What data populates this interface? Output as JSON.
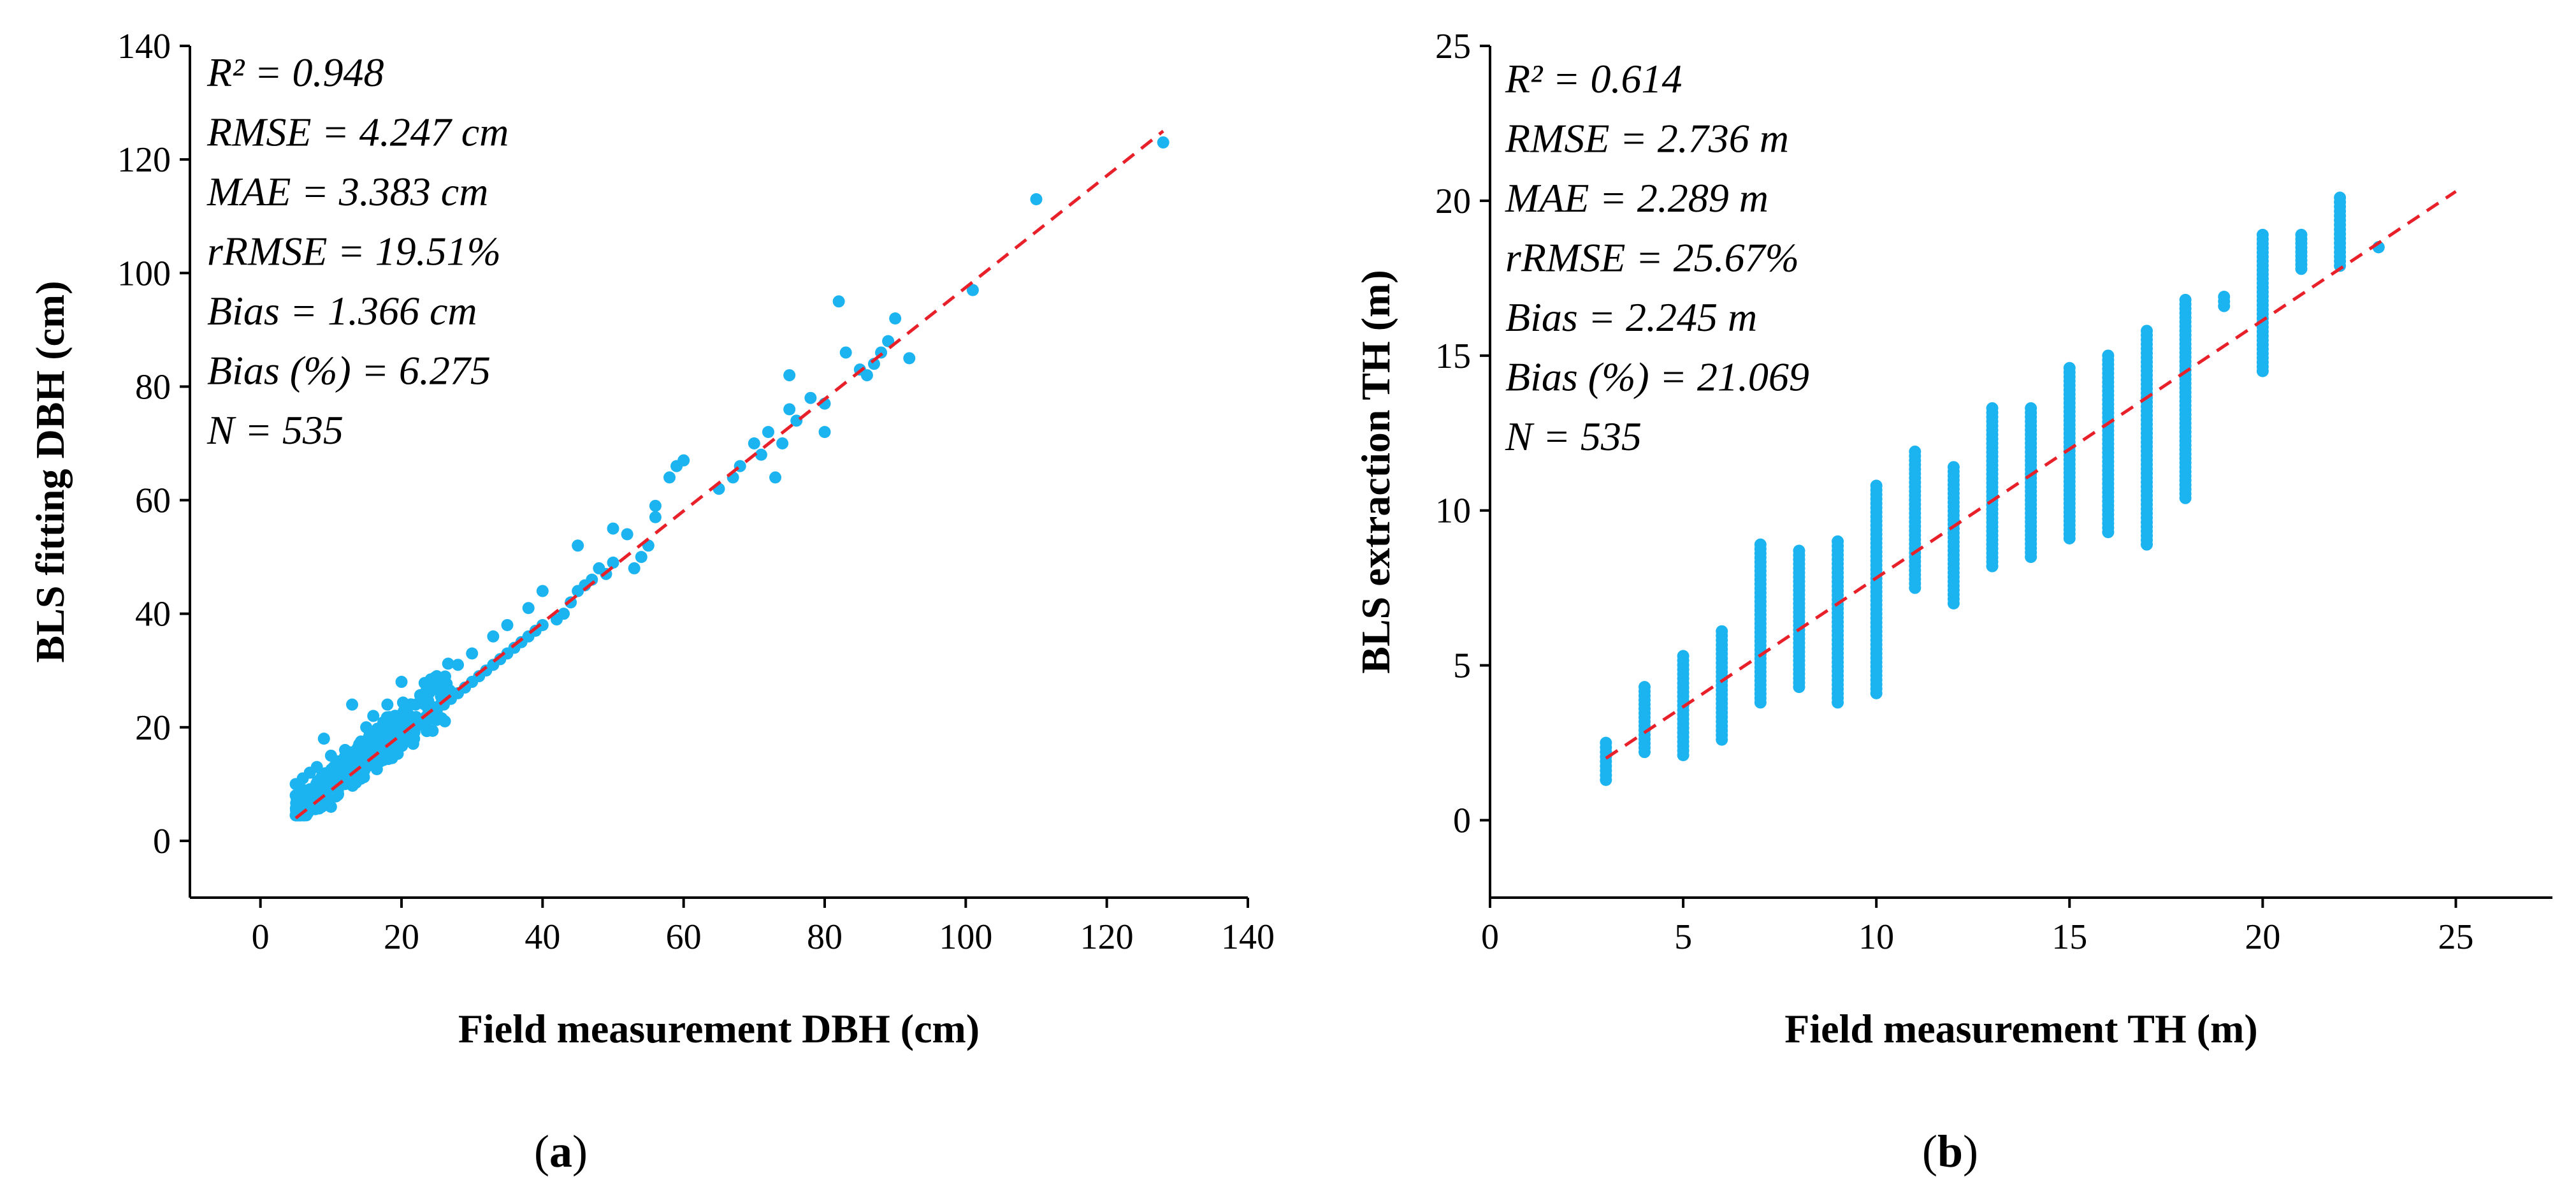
{
  "colors": {
    "point": "#1cb4f0",
    "fit_line": "#e8202a",
    "axis": "#000000"
  },
  "chart_data": [
    {
      "type": "scatter",
      "panel_label": "a",
      "xlabel": "Field measurement DBH (cm)",
      "ylabel": "BLS fitting DBH (cm)",
      "xlim": [
        -10,
        140
      ],
      "ylim": [
        -10,
        140
      ],
      "xticks": [
        0,
        20,
        40,
        60,
        80,
        100,
        120,
        140
      ],
      "yticks": [
        0,
        20,
        40,
        60,
        80,
        100,
        120,
        140
      ],
      "fit_line": [
        [
          5,
          4
        ],
        [
          128,
          125
        ]
      ],
      "stats": [
        "R² = 0.948",
        "RMSE = 4.247 cm",
        "MAE = 3.383 cm",
        "rRMSE = 19.51%",
        "Bias = 1.366 cm",
        "Bias (%) = 6.275",
        "N = 535"
      ],
      "points": [
        [
          5,
          8
        ],
        [
          5,
          10
        ],
        [
          6,
          6
        ],
        [
          6,
          9
        ],
        [
          6,
          11
        ],
        [
          7,
          7
        ],
        [
          7,
          9
        ],
        [
          7,
          12
        ],
        [
          8,
          6
        ],
        [
          8,
          8
        ],
        [
          8,
          10
        ],
        [
          8,
          13
        ],
        [
          9,
          7
        ],
        [
          9,
          9
        ],
        [
          9,
          11
        ],
        [
          9,
          18
        ],
        [
          10,
          6
        ],
        [
          10,
          8
        ],
        [
          10,
          12
        ],
        [
          10,
          15
        ],
        [
          11,
          9
        ],
        [
          11,
          11
        ],
        [
          11,
          14
        ],
        [
          12,
          10
        ],
        [
          12,
          13
        ],
        [
          12,
          16
        ],
        [
          13,
          12
        ],
        [
          13,
          15
        ],
        [
          13,
          24
        ],
        [
          14,
          11
        ],
        [
          14,
          14
        ],
        [
          14,
          17
        ],
        [
          15,
          13
        ],
        [
          15,
          16
        ],
        [
          15,
          20
        ],
        [
          16,
          14
        ],
        [
          16,
          18
        ],
        [
          16,
          22
        ],
        [
          17,
          15
        ],
        [
          17,
          19
        ],
        [
          18,
          16
        ],
        [
          18,
          20
        ],
        [
          18,
          24
        ],
        [
          19,
          17
        ],
        [
          19,
          21
        ],
        [
          20,
          18
        ],
        [
          20,
          22
        ],
        [
          20,
          28
        ],
        [
          21,
          19
        ],
        [
          22,
          20
        ],
        [
          22,
          24
        ],
        [
          23,
          21
        ],
        [
          24,
          22
        ],
        [
          25,
          23
        ],
        [
          25,
          29
        ],
        [
          26,
          24
        ],
        [
          27,
          25
        ],
        [
          28,
          26
        ],
        [
          28,
          31
        ],
        [
          29,
          27
        ],
        [
          30,
          28
        ],
        [
          30,
          33
        ],
        [
          31,
          29
        ],
        [
          32,
          30
        ],
        [
          33,
          31
        ],
        [
          33,
          36
        ],
        [
          34,
          32
        ],
        [
          35,
          33
        ],
        [
          35,
          38
        ],
        [
          36,
          34
        ],
        [
          37,
          35
        ],
        [
          38,
          36
        ],
        [
          38,
          41
        ],
        [
          39,
          37
        ],
        [
          40,
          38
        ],
        [
          40,
          44
        ],
        [
          42,
          39
        ],
        [
          43,
          40
        ],
        [
          44,
          42
        ],
        [
          45,
          44
        ],
        [
          45,
          52
        ],
        [
          46,
          45
        ],
        [
          47,
          46
        ],
        [
          48,
          48
        ],
        [
          49,
          47
        ],
        [
          50,
          49
        ],
        [
          50,
          55
        ],
        [
          52,
          54
        ],
        [
          53,
          48
        ],
        [
          54,
          50
        ],
        [
          55,
          52
        ],
        [
          56,
          57
        ],
        [
          56,
          59
        ],
        [
          58,
          64
        ],
        [
          59,
          66
        ],
        [
          60,
          67
        ],
        [
          65,
          62
        ],
        [
          67,
          64
        ],
        [
          68,
          66
        ],
        [
          70,
          70
        ],
        [
          71,
          68
        ],
        [
          72,
          72
        ],
        [
          73,
          64
        ],
        [
          74,
          70
        ],
        [
          75,
          76
        ],
        [
          75,
          82
        ],
        [
          76,
          74
        ],
        [
          78,
          78
        ],
        [
          80,
          72
        ],
        [
          80,
          77
        ],
        [
          82,
          95
        ],
        [
          83,
          86
        ],
        [
          85,
          83
        ],
        [
          86,
          82
        ],
        [
          87,
          84
        ],
        [
          88,
          86
        ],
        [
          89,
          88
        ],
        [
          90,
          92
        ],
        [
          92,
          85
        ],
        [
          101,
          97
        ],
        [
          110,
          113
        ],
        [
          128,
          123
        ]
      ]
    },
    {
      "type": "scatter",
      "panel_label": "b",
      "xlabel": "Field measurement TH (m)",
      "ylabel": "BLS extraction TH (m)",
      "xlim": [
        0,
        27.5
      ],
      "ylim": [
        -2.5,
        25
      ],
      "xticks": [
        0,
        5,
        10,
        15,
        20,
        25
      ],
      "yticks": [
        0,
        5,
        10,
        15,
        20,
        25
      ],
      "fit_line": [
        [
          3,
          2
        ],
        [
          25,
          20.3
        ]
      ],
      "stats": [
        "R² = 0.614",
        "RMSE = 2.736 m",
        "MAE = 2.289 m",
        "rRMSE = 25.67%",
        "Bias = 2.245 m",
        "Bias (%) = 21.069",
        "N = 535"
      ],
      "columns": [
        {
          "x": 3,
          "ymin": 1.3,
          "ymax": 2.5
        },
        {
          "x": 4,
          "ymin": 2.2,
          "ymax": 4.3
        },
        {
          "x": 5,
          "ymin": 2.1,
          "ymax": 5.3
        },
        {
          "x": 6,
          "ymin": 2.6,
          "ymax": 6.1
        },
        {
          "x": 7,
          "ymin": 3.8,
          "ymax": 8.9
        },
        {
          "x": 8,
          "ymin": 4.3,
          "ymax": 8.7
        },
        {
          "x": 9,
          "ymin": 3.8,
          "ymax": 9.0
        },
        {
          "x": 10,
          "ymin": 4.1,
          "ymax": 10.8
        },
        {
          "x": 11,
          "ymin": 7.5,
          "ymax": 11.9
        },
        {
          "x": 12,
          "ymin": 7.0,
          "ymax": 11.4
        },
        {
          "x": 13,
          "ymin": 8.2,
          "ymax": 13.3
        },
        {
          "x": 14,
          "ymin": 8.5,
          "ymax": 13.3
        },
        {
          "x": 15,
          "ymin": 9.1,
          "ymax": 14.6
        },
        {
          "x": 16,
          "ymin": 9.3,
          "ymax": 15.0
        },
        {
          "x": 17,
          "ymin": 8.9,
          "ymax": 15.8
        },
        {
          "x": 18,
          "ymin": 10.4,
          "ymax": 16.8
        },
        {
          "x": 19,
          "ymin": 16.6,
          "ymax": 16.9
        },
        {
          "x": 20,
          "ymin": 14.5,
          "ymax": 18.9
        },
        {
          "x": 21,
          "ymin": 17.8,
          "ymax": 18.9
        },
        {
          "x": 22,
          "ymin": 17.9,
          "ymax": 20.1
        },
        {
          "x": 23,
          "ymin": 18.5,
          "ymax": 18.5
        }
      ]
    }
  ]
}
